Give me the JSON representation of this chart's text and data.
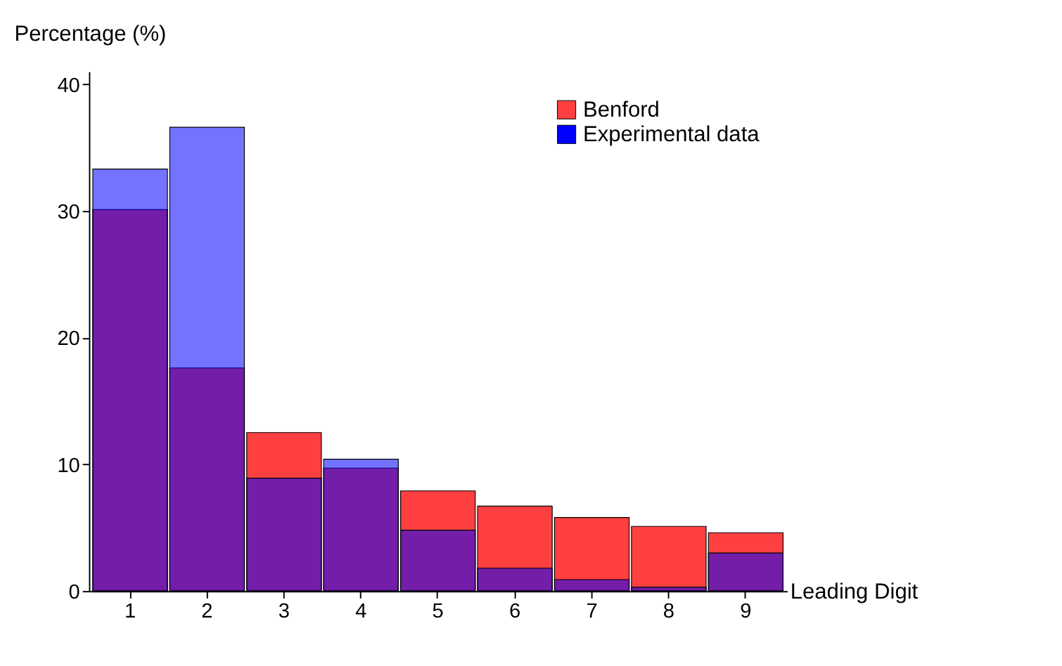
{
  "chart_data": {
    "type": "bar",
    "xlabel": "Leading Digit",
    "ylabel": "Percentage (%)",
    "categories": [
      "1",
      "2",
      "3",
      "4",
      "5",
      "6",
      "7",
      "8",
      "9"
    ],
    "series": [
      {
        "name": "Benford",
        "color": "#ff4040",
        "values": [
          30.1,
          17.6,
          12.5,
          9.7,
          7.9,
          6.7,
          5.8,
          5.1,
          4.6
        ]
      },
      {
        "name": "Experimental data",
        "color": "#0000ff",
        "values": [
          33.3,
          36.6,
          8.9,
          10.4,
          4.8,
          1.8,
          0.9,
          0.3,
          3.0
        ]
      }
    ],
    "ylim": [
      0,
      41
    ],
    "yticks": [
      0,
      10,
      20,
      30,
      40
    ],
    "grid": false,
    "legend": "top right"
  }
}
